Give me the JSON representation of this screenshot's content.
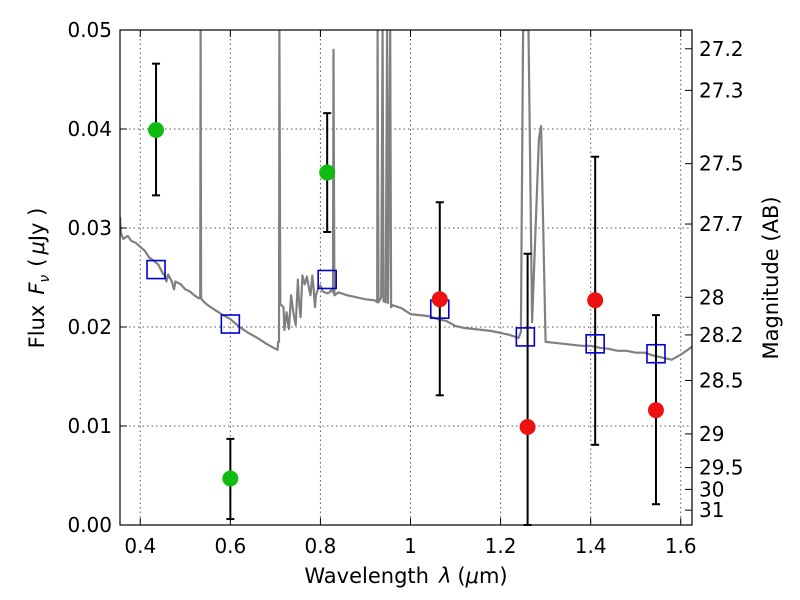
{
  "chart_data": {
    "type": "scatter",
    "title": "",
    "xlabel": "Wavelength",
    "xlabel_symbol": "λ",
    "xlabel_unit_open": "(",
    "xlabel_unit_mu": "μ",
    "xlabel_unit_rest": "m)",
    "ylabel": "Flux",
    "ylabel_symbol": "F",
    "ylabel_symbol_sub": "ν",
    "ylabel_unit_open": "(",
    "ylabel_unit_mu": "μ",
    "ylabel_unit_rest": "Jy )",
    "y2label": "Magnitude (AB)",
    "xlim": [
      0.355,
      1.625
    ],
    "ylim": [
      0.0,
      0.05
    ],
    "xticks": [
      {
        "value": 0.4,
        "label": "0.4"
      },
      {
        "value": 0.6,
        "label": "0.6"
      },
      {
        "value": 0.8,
        "label": "0.8"
      },
      {
        "value": 1.0,
        "label": "1"
      },
      {
        "value": 1.2,
        "label": "1.2"
      },
      {
        "value": 1.4,
        "label": "1.4"
      },
      {
        "value": 1.6,
        "label": "1.6"
      }
    ],
    "yticks": [
      {
        "value": 0.0,
        "label": "0.00"
      },
      {
        "value": 0.01,
        "label": "0.01"
      },
      {
        "value": 0.02,
        "label": "0.02"
      },
      {
        "value": 0.03,
        "label": "0.03"
      },
      {
        "value": 0.04,
        "label": "0.04"
      },
      {
        "value": 0.05,
        "label": "0.05"
      }
    ],
    "y2ticks": [
      {
        "label": "27.2",
        "flux": 0.0481
      },
      {
        "label": "27.3",
        "flux": 0.0439
      },
      {
        "label": "27.5",
        "flux": 0.0365
      },
      {
        "label": "27.7",
        "flux": 0.0304
      },
      {
        "label": "28",
        "flux": 0.023
      },
      {
        "label": "28.2",
        "flux": 0.0192
      },
      {
        "label": "28.5",
        "flux": 0.0146
      },
      {
        "label": "29",
        "flux": 0.0092
      },
      {
        "label": "29.5",
        "flux": 0.0058
      },
      {
        "label": "30",
        "flux": 0.0036
      },
      {
        "label": "31",
        "flux": 0.0015
      }
    ],
    "grid": true,
    "colors": {
      "spectrum": "#808080",
      "model_squares": "#0000cc",
      "green_points": "#11bb11",
      "red_points": "#ee1111",
      "errorbars": "#000000",
      "grid": "#555555"
    },
    "spectrum": [
      [
        0.355,
        0.0311
      ],
      [
        0.357,
        0.0295
      ],
      [
        0.362,
        0.0289
      ],
      [
        0.372,
        0.0292
      ],
      [
        0.38,
        0.0287
      ],
      [
        0.39,
        0.0285
      ],
      [
        0.4,
        0.0281
      ],
      [
        0.41,
        0.0277
      ],
      [
        0.42,
        0.027
      ],
      [
        0.43,
        0.0267
      ],
      [
        0.44,
        0.0263
      ],
      [
        0.45,
        0.0254
      ],
      [
        0.455,
        0.0252
      ],
      [
        0.458,
        0.0246
      ],
      [
        0.462,
        0.0253
      ],
      [
        0.47,
        0.0246
      ],
      [
        0.475,
        0.0238
      ],
      [
        0.478,
        0.0246
      ],
      [
        0.49,
        0.0243
      ],
      [
        0.5,
        0.0238
      ],
      [
        0.51,
        0.0236
      ],
      [
        0.52,
        0.0232
      ],
      [
        0.53,
        0.0229
      ],
      [
        0.533,
        0.0229
      ],
      [
        0.534,
        0.05
      ],
      [
        0.535,
        0.0229
      ],
      [
        0.54,
        0.0226
      ],
      [
        0.55,
        0.0222
      ],
      [
        0.56,
        0.0219
      ],
      [
        0.58,
        0.0213
      ],
      [
        0.6,
        0.0208
      ],
      [
        0.62,
        0.02
      ],
      [
        0.64,
        0.0194
      ],
      [
        0.66,
        0.0189
      ],
      [
        0.68,
        0.0183
      ],
      [
        0.7,
        0.0178
      ],
      [
        0.705,
        0.0177
      ],
      [
        0.706,
        0.0185
      ],
      [
        0.708,
        0.0185
      ],
      [
        0.709,
        0.05
      ],
      [
        0.711,
        0.0223
      ],
      [
        0.718,
        0.022
      ],
      [
        0.72,
        0.0197
      ],
      [
        0.725,
        0.0215
      ],
      [
        0.73,
        0.0198
      ],
      [
        0.735,
        0.0232
      ],
      [
        0.74,
        0.0214
      ],
      [
        0.745,
        0.0202
      ],
      [
        0.75,
        0.0248
      ],
      [
        0.752,
        0.0229
      ],
      [
        0.756,
        0.021
      ],
      [
        0.76,
        0.0252
      ],
      [
        0.765,
        0.0243
      ],
      [
        0.77,
        0.0251
      ],
      [
        0.775,
        0.0238
      ],
      [
        0.778,
        0.0232
      ],
      [
        0.782,
        0.0252
      ],
      [
        0.785,
        0.0238
      ],
      [
        0.788,
        0.022
      ],
      [
        0.79,
        0.0232
      ],
      [
        0.795,
        0.0239
      ],
      [
        0.8,
        0.0242
      ],
      [
        0.805,
        0.0236
      ],
      [
        0.81,
        0.0235
      ],
      [
        0.815,
        0.0234
      ],
      [
        0.82,
        0.0235
      ],
      [
        0.825,
        0.0238
      ],
      [
        0.828,
        0.0235
      ],
      [
        0.829,
        0.048
      ],
      [
        0.831,
        0.0232
      ],
      [
        0.84,
        0.0235
      ],
      [
        0.86,
        0.0232
      ],
      [
        0.88,
        0.023
      ],
      [
        0.9,
        0.0228
      ],
      [
        0.92,
        0.0227
      ],
      [
        0.926,
        0.0225
      ],
      [
        0.927,
        0.05
      ],
      [
        0.929,
        0.0225
      ],
      [
        0.935,
        0.023
      ],
      [
        0.938,
        0.05
      ],
      [
        0.94,
        0.0226
      ],
      [
        0.945,
        0.0225
      ],
      [
        0.948,
        0.05
      ],
      [
        0.95,
        0.0224
      ],
      [
        0.955,
        0.05
      ],
      [
        0.957,
        0.022
      ],
      [
        0.96,
        0.0222
      ],
      [
        0.98,
        0.0219
      ],
      [
        1.0,
        0.0213
      ],
      [
        1.02,
        0.0212
      ],
      [
        1.04,
        0.0211
      ],
      [
        1.06,
        0.0208
      ],
      [
        1.08,
        0.0206
      ],
      [
        1.1,
        0.0201
      ],
      [
        1.12,
        0.0199
      ],
      [
        1.14,
        0.0198
      ],
      [
        1.16,
        0.0197
      ],
      [
        1.18,
        0.0196
      ],
      [
        1.2,
        0.0194
      ],
      [
        1.22,
        0.0192
      ],
      [
        1.24,
        0.0189
      ],
      [
        1.245,
        0.0195
      ],
      [
        1.25,
        0.05
      ],
      [
        1.262,
        0.05
      ],
      [
        1.27,
        0.0205
      ],
      [
        1.285,
        0.039
      ],
      [
        1.29,
        0.0403
      ],
      [
        1.3,
        0.0185
      ],
      [
        1.32,
        0.0184
      ],
      [
        1.34,
        0.0183
      ],
      [
        1.36,
        0.0182
      ],
      [
        1.38,
        0.0181
      ],
      [
        1.4,
        0.0181
      ],
      [
        1.42,
        0.0179
      ],
      [
        1.44,
        0.0178
      ],
      [
        1.46,
        0.0176
      ],
      [
        1.48,
        0.0176
      ],
      [
        1.5,
        0.0174
      ],
      [
        1.52,
        0.0174
      ],
      [
        1.54,
        0.0171
      ],
      [
        1.56,
        0.0169
      ],
      [
        1.58,
        0.0167
      ],
      [
        1.6,
        0.0172
      ],
      [
        1.625,
        0.018
      ]
    ],
    "series": [
      {
        "marker": "square-open",
        "x": [
          0.435,
          0.6,
          0.815,
          1.065,
          1.255,
          1.41,
          1.545
        ],
        "y": [
          0.0258,
          0.0203,
          0.0248,
          0.0218,
          0.019,
          0.0183,
          0.0173
        ]
      },
      {
        "marker": "circle",
        "color": "green",
        "x": [
          0.435,
          0.6,
          0.815
        ],
        "y": [
          0.0399,
          0.0047,
          0.0356
        ],
        "err_low": [
          0.0333,
          0.0006,
          0.0296
        ],
        "err_high": [
          0.0466,
          0.0087,
          0.0416
        ]
      },
      {
        "marker": "circle",
        "color": "red",
        "x": [
          1.065,
          1.26,
          1.41,
          1.545
        ],
        "y": [
          0.0228,
          0.0099,
          0.0227,
          0.0116
        ],
        "err_low": [
          0.0131,
          0.0,
          0.0081,
          0.0021
        ],
        "err_high": [
          0.0326,
          0.0274,
          0.0372,
          0.0212
        ]
      }
    ]
  }
}
